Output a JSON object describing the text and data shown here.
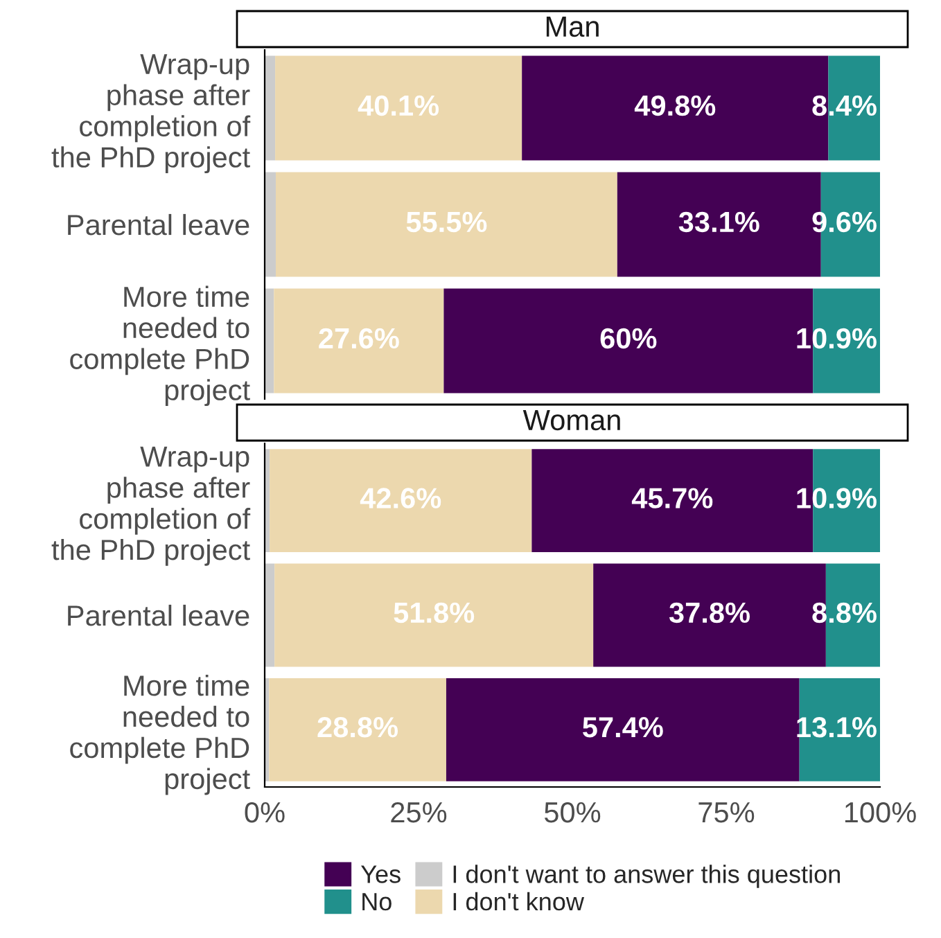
{
  "chart_data": [
    {
      "type": "bar",
      "title": "Man",
      "orientation": "horizontal",
      "stacked": true,
      "categories": [
        "Wrap-up\nphase after\ncompletion of\nthe PhD project",
        "Parental leave",
        "More time\nneeded to\ncomplete PhD\nproject"
      ],
      "series": [
        {
          "name": "I don't want to answer this question",
          "color": "#cccccc",
          "values": [
            1.7,
            1.8,
            1.5
          ],
          "value_labels": [
            null,
            null,
            null
          ]
        },
        {
          "name": "I don't know",
          "color": "#ecd8ae",
          "values": [
            40.1,
            55.5,
            27.6
          ],
          "value_labels": [
            "40.1%",
            "55.5%",
            "27.6%"
          ]
        },
        {
          "name": "Yes",
          "color": "#440154",
          "values": [
            49.8,
            33.1,
            60
          ],
          "value_labels": [
            "49.8%",
            "33.1%",
            "60%"
          ]
        },
        {
          "name": "No",
          "color": "#21908c",
          "values": [
            8.4,
            9.6,
            10.9
          ],
          "value_labels": [
            "8.4%",
            "9.6%",
            "10.9%"
          ]
        }
      ],
      "xlim": [
        0,
        100
      ],
      "tick_labels": "y",
      "legend": "bottom",
      "grid": false
    },
    {
      "type": "bar",
      "title": "Woman",
      "orientation": "horizontal",
      "stacked": true,
      "categories": [
        "Wrap-up\nphase after\ncompletion of\nthe PhD project",
        "Parental leave",
        "More time\nneeded to\ncomplete PhD\nproject"
      ],
      "series": [
        {
          "color": "#cccccc",
          "values": [
            0.8,
            1.6,
            0.7
          ],
          "value_labels": [
            null,
            null,
            null
          ]
        },
        {
          "color": "#ecd8ae",
          "values": [
            42.6,
            51.8,
            28.8
          ],
          "value_labels": [
            "42.6%",
            "51.8%",
            "28.8%"
          ]
        },
        {
          "color": "#440154",
          "values": [
            45.7,
            37.8,
            57.4
          ],
          "value_labels": [
            "45.7%",
            "37.8%",
            "57.4%"
          ]
        },
        {
          "color": "#21908c",
          "values": [
            10.9,
            8.8,
            13.1
          ],
          "value_labels": [
            "10.9%",
            "8.8%",
            "13.1%"
          ]
        }
      ],
      "xlim": [
        0,
        100
      ],
      "xticks": [
        {
          "value": 0,
          "label": "0%"
        },
        {
          "value": 25,
          "label": "25%"
        },
        {
          "value": 50,
          "label": "50%"
        },
        {
          "value": 75,
          "label": "75%"
        },
        {
          "value": 100,
          "label": "100%"
        }
      ],
      "grid": false
    }
  ]
}
